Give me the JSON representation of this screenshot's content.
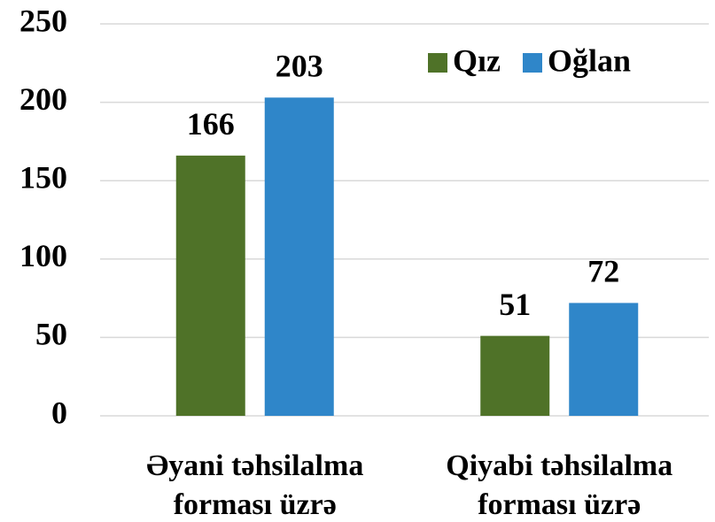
{
  "chart_data": {
    "type": "bar",
    "categories": [
      "Əyani təhsilalma forması üzrə",
      "Qiyabi təhsilalma forması üzrə"
    ],
    "series": [
      {
        "name": "Qız",
        "color": "#4f7228",
        "values": [
          166,
          51
        ]
      },
      {
        "name": "Oğlan",
        "color": "#2f86c9",
        "values": [
          203,
          72
        ]
      }
    ],
    "ylim": [
      0,
      250
    ],
    "yticks": [
      0,
      50,
      100,
      150,
      200,
      250
    ],
    "grid": true,
    "legend": "top-right"
  }
}
